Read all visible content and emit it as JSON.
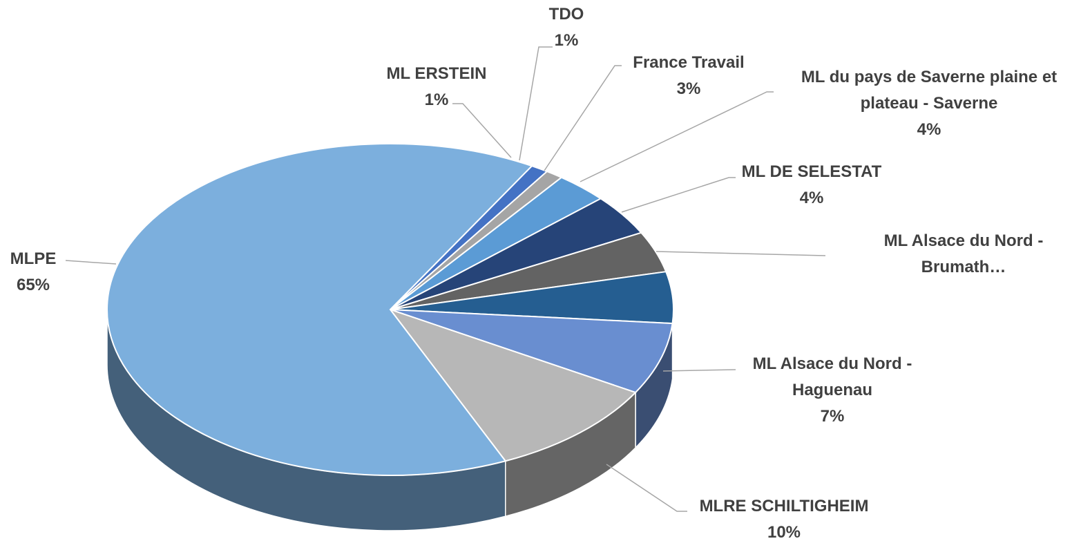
{
  "chart_data": {
    "type": "pie",
    "categories": [
      "ML ERSTEIN",
      "TDO",
      "France Travail",
      "ML du pays de Saverne plaine et plateau - Saverne",
      "ML DE SELESTAT",
      "ML Alsace du Nord - Brumath…",
      "ML Alsace du Nord - Haguenau",
      "MLRE SCHILTIGHEIM",
      "MLPE"
    ],
    "values": [
      1,
      1,
      3,
      4,
      4,
      5,
      7,
      10,
      65
    ],
    "value_labels": [
      "1%",
      "1%",
      "3%",
      "4%",
      "4%",
      null,
      "7%",
      "10%",
      "65%"
    ],
    "colors": [
      "#4472c4",
      "#a5a5a5",
      "#5b9bd5",
      "#264478",
      "#636363",
      "#255e91",
      "#698ed0",
      "#b7b7b7",
      "#7cafdd"
    ]
  }
}
